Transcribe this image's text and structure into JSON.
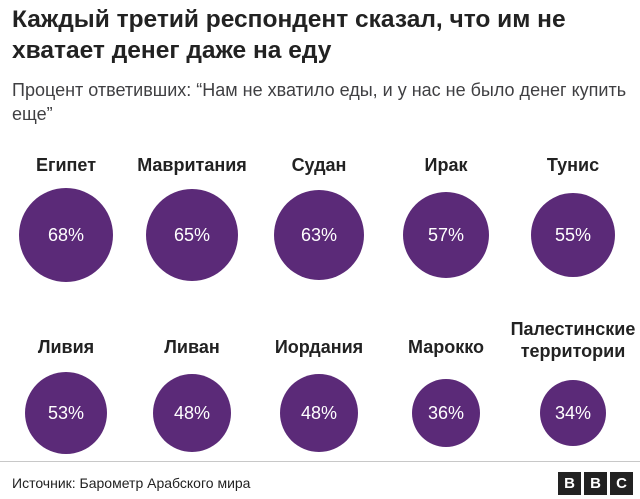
{
  "header": {
    "title": "Каждый третий респондент сказал, что им не хватает денег даже на еду",
    "subtitle": "Процент ответивших: “Нам не хватило еды, и у нас не было денег купить еще”"
  },
  "chart_data": {
    "type": "bubble",
    "unit": "%",
    "categories": [
      "Египет",
      "Мавритания",
      "Судан",
      "Ирак",
      "Тунис",
      "Ливия",
      "Ливан",
      "Иордания",
      "Марокко",
      "Палестинские территории"
    ],
    "values": [
      68,
      65,
      63,
      57,
      55,
      53,
      48,
      48,
      36,
      34
    ],
    "value_labels": [
      "68%",
      "65%",
      "63%",
      "57%",
      "55%",
      "53%",
      "48%",
      "48%",
      "36%",
      "34%"
    ],
    "color": "#5b2a78"
  },
  "footer": {
    "source": "Источник: Барометр Арабского мира",
    "logo_letters": [
      "B",
      "B",
      "C"
    ]
  }
}
